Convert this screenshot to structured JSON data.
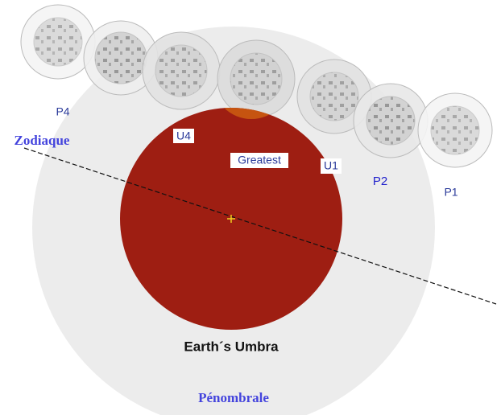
{
  "zodiac_label": "Zodiaque",
  "penumbra_label": "Pénombrale",
  "umbra_label": "Earth´s Umbra",
  "greatest_label": "Greatest",
  "contacts": {
    "p4": "P4",
    "u4": "U4",
    "u1": "U1",
    "p2": "P2",
    "p1": "P1"
  }
}
